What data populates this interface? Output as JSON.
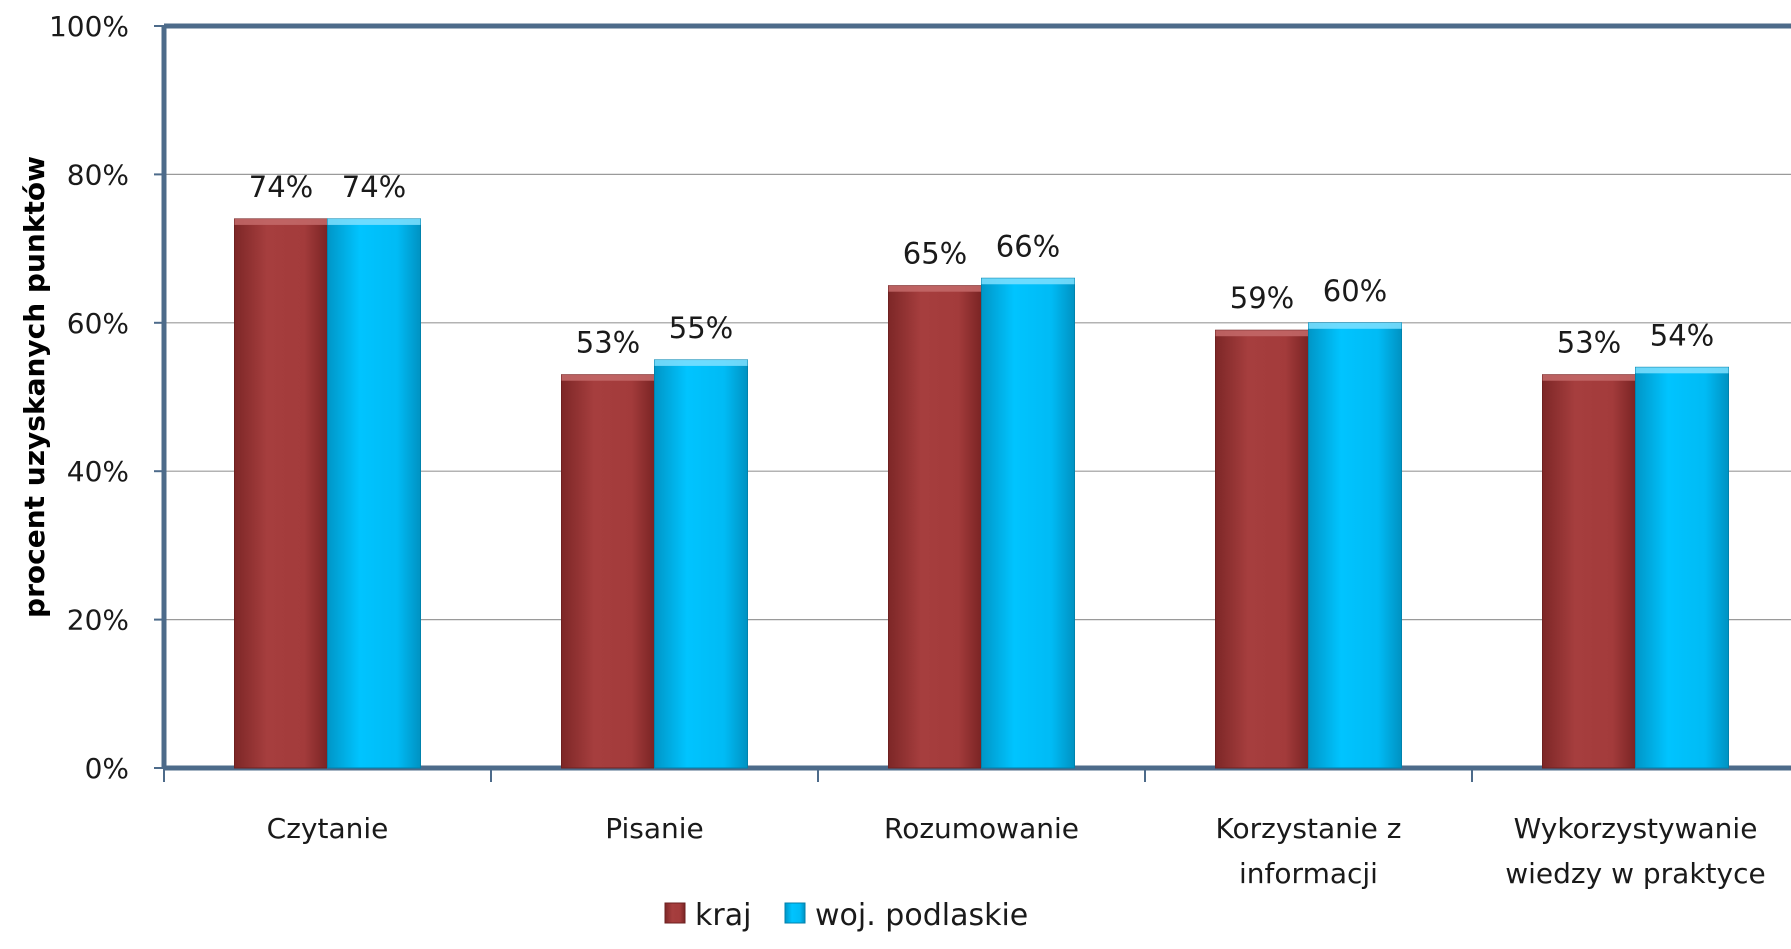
{
  "chart_data": {
    "type": "bar",
    "title": "",
    "xlabel": "",
    "ylabel": "procent uzyskanych punktów",
    "ylim": [
      0,
      100
    ],
    "yticks": [
      0,
      20,
      40,
      60,
      80,
      100
    ],
    "ytick_labels": [
      "0%",
      "20%",
      "40%",
      "60%",
      "80%",
      "100%"
    ],
    "grid": true,
    "legend_position": "bottom",
    "categories": [
      [
        "Czytanie"
      ],
      [
        "Pisanie"
      ],
      [
        "Rozumowanie"
      ],
      [
        "Korzystanie z",
        "informacji"
      ],
      [
        "Wykorzystywanie",
        "wiedzy w praktyce"
      ]
    ],
    "series": [
      {
        "name": "kraj",
        "color": "#A33B3B",
        "values": [
          74,
          53,
          65,
          59,
          53
        ],
        "labels": [
          "74%",
          "53%",
          "65%",
          "59%",
          "53%"
        ]
      },
      {
        "name": "woj. podlaskie",
        "color": "#00BFFF",
        "values": [
          74,
          55,
          66,
          60,
          54
        ],
        "labels": [
          "74%",
          "55%",
          "66%",
          "60%",
          "54%"
        ]
      }
    ]
  }
}
